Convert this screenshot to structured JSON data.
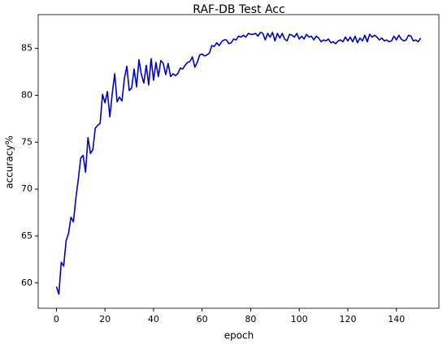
{
  "chart_data": {
    "type": "line",
    "title": "RAF-DB Test Acc",
    "x_label": "epoch",
    "y_label": "accuracy%",
    "x": [
      0,
      1,
      2,
      3,
      4,
      5,
      6,
      7,
      8,
      9,
      10,
      11,
      12,
      13,
      14,
      15,
      16,
      17,
      18,
      19,
      20,
      21,
      22,
      23,
      24,
      25,
      26,
      27,
      28,
      29,
      30,
      31,
      32,
      33,
      34,
      35,
      36,
      37,
      38,
      39,
      40,
      41,
      42,
      43,
      44,
      45,
      46,
      47,
      48,
      49,
      50,
      51,
      52,
      53,
      54,
      55,
      56,
      57,
      58,
      59,
      60,
      61,
      62,
      63,
      64,
      65,
      66,
      67,
      68,
      69,
      70,
      71,
      72,
      73,
      74,
      75,
      76,
      77,
      78,
      79,
      80,
      81,
      82,
      83,
      84,
      85,
      86,
      87,
      88,
      89,
      90,
      91,
      92,
      93,
      94,
      95,
      96,
      97,
      98,
      99,
      100,
      101,
      102,
      103,
      104,
      105,
      106,
      107,
      108,
      109,
      110,
      111,
      112,
      113,
      114,
      115,
      116,
      117,
      118,
      119,
      120,
      121,
      122,
      123,
      124,
      125,
      126,
      127,
      128,
      129,
      130,
      131,
      132,
      133,
      134,
      135,
      136,
      137,
      138,
      139,
      140,
      141,
      142,
      143,
      144,
      145,
      146,
      147,
      148,
      149,
      150
    ],
    "series": [
      {
        "name": "accuracy",
        "color": "#0000cc",
        "values": [
          59.6,
          58.8,
          62.2,
          61.8,
          64.5,
          65.3,
          67.0,
          66.5,
          69.0,
          71.0,
          73.3,
          73.6,
          71.8,
          75.5,
          73.8,
          74.2,
          76.5,
          76.8,
          77.0,
          80.1,
          79.2,
          80.4,
          77.7,
          80.2,
          82.3,
          79.3,
          79.8,
          79.4,
          81.8,
          83.1,
          80.5,
          80.8,
          82.8,
          80.9,
          83.8,
          82.2,
          81.3,
          83.2,
          81.1,
          83.9,
          81.6,
          83.5,
          82.0,
          83.7,
          83.4,
          82.2,
          83.4,
          82.0,
          82.3,
          82.1,
          82.3,
          82.9,
          82.8,
          83.2,
          83.5,
          83.6,
          84.1,
          83.0,
          83.5,
          84.3,
          84.4,
          84.2,
          84.3,
          84.5,
          85.3,
          85.2,
          85.6,
          85.3,
          85.7,
          85.9,
          85.9,
          85.5,
          85.6,
          86.0,
          85.9,
          86.3,
          86.2,
          86.4,
          86.2,
          86.6,
          86.5,
          86.5,
          86.6,
          86.3,
          86.7,
          86.6,
          85.9,
          86.6,
          86.2,
          86.7,
          85.8,
          86.6,
          86.1,
          86.6,
          86.0,
          85.8,
          86.5,
          86.4,
          86.2,
          86.6,
          86.0,
          86.3,
          86.0,
          86.5,
          86.2,
          86.3,
          85.9,
          86.3,
          86.1,
          85.7,
          85.9,
          85.8,
          86.0,
          85.6,
          85.7,
          85.5,
          85.8,
          85.9,
          85.7,
          86.2,
          85.8,
          86.2,
          85.7,
          86.3,
          85.6,
          86.1,
          85.8,
          86.4,
          85.7,
          86.5,
          86.2,
          86.4,
          86.2,
          85.9,
          86.1,
          85.8,
          85.9,
          85.7,
          85.8,
          86.3,
          85.9,
          86.4,
          86.0,
          85.8,
          85.9,
          86.4,
          86.3,
          85.8,
          85.9,
          85.7,
          86.1
        ]
      }
    ],
    "xlim": [
      -7.5,
      157.5
    ],
    "ylim": [
      57.3,
      88.6
    ],
    "xticks": [
      0,
      20,
      40,
      60,
      80,
      100,
      120,
      140
    ],
    "yticks": [
      60,
      65,
      70,
      75,
      80,
      85
    ]
  }
}
